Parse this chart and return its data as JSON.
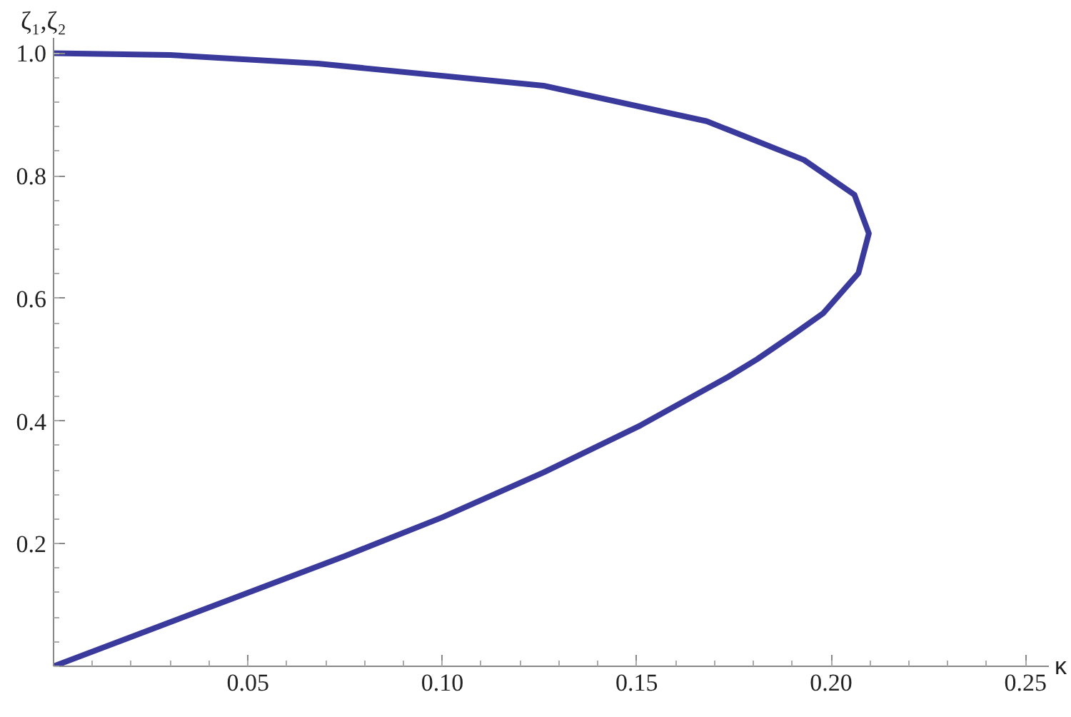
{
  "chart_data": {
    "type": "line",
    "xlabel": "κ",
    "ylabel": "ζ₁,ζ₂",
    "series": [
      {
        "color": "#3a3a9c",
        "x": [
          0,
          0.025,
          0.05,
          0.075,
          0.1,
          0.126,
          0.151,
          0.1735,
          0.181,
          0.19,
          0.198,
          0.207,
          0.2097,
          0.206,
          0.193,
          0.168,
          0.126,
          0.068,
          0.03,
          0
        ],
        "values": [
          0,
          0.06,
          0.12,
          0.18,
          0.243,
          0.316,
          0.393,
          0.472,
          0.501,
          0.54,
          0.576,
          0.641,
          0.706,
          0.769,
          0.826,
          0.889,
          0.947,
          0.983,
          0.997,
          1.0
        ]
      }
    ],
    "xlim": [
      0,
      0.256
    ],
    "ylim": [
      0,
      1.025
    ],
    "xticks": [
      0.05,
      {
        "value": 0.1,
        "label": "0.10"
      },
      0.15,
      {
        "value": 0.2,
        "label": "0.20"
      },
      0.25
    ],
    "yticks": [
      0.2,
      0.4,
      0.6,
      0.8,
      {
        "value": 1.0,
        "label": "1.0"
      }
    ],
    "grid": false,
    "marker": "none",
    "line_style": "solid"
  }
}
